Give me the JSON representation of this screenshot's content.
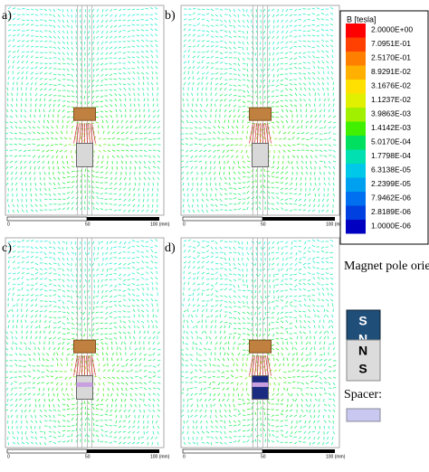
{
  "panels": [
    {
      "label": "a)"
    },
    {
      "label": "b)"
    },
    {
      "label": "c)"
    },
    {
      "label": "d)"
    }
  ],
  "scale_labels": [
    "0",
    "50",
    "100 (mm)"
  ],
  "colorbar": {
    "title": "B [tesla]",
    "labels": [
      "2.0000E+00",
      "7.0951E-01",
      "2.5170E-01",
      "8.9291E-02",
      "3.1676E-02",
      "1.1237E-02",
      "3.9863E-03",
      "1.4142E-03",
      "5.0170E-04",
      "1.7798E-04",
      "6.3138E-05",
      "2.2399E-05",
      "7.9462E-06",
      "2.8189E-06",
      "1.0000E-06"
    ]
  },
  "legend": {
    "title": "Magnet pole orientation:",
    "magnets": [
      {
        "top": "S",
        "bottom": "N"
      },
      {
        "top": "N",
        "bottom": "S"
      }
    ],
    "spacer": "Spacer:"
  }
}
